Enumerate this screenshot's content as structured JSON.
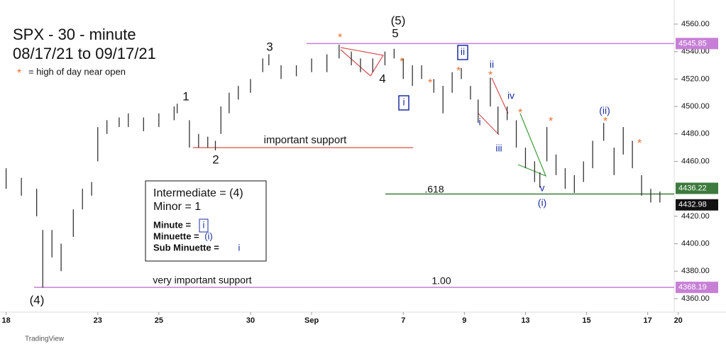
{
  "chart_data": {
    "type": "bar",
    "title": "SPX - 30 - minute",
    "subtitle": "08/17/21 to 09/17/21",
    "note_symbol": "*",
    "note": "= high of day near open",
    "x": [
      0,
      0.5,
      1.0,
      1.2,
      1.5,
      1.8,
      2.2,
      2.5,
      2.8,
      3.0,
      3.3,
      3.7,
      4.0,
      4.5,
      5.0,
      5.5,
      5.6,
      6.0,
      6.3,
      6.6,
      6.85,
      7.03,
      7.3,
      7.6,
      8.0,
      8.4,
      8.6,
      9.0,
      9.5,
      10.0,
      10.5,
      10.9,
      11.3,
      11.6,
      12.0,
      12.4,
      12.7,
      13.0,
      13.3,
      13.6,
      14.0,
      14.3,
      14.6,
      14.9,
      15.2,
      15.45,
      15.85,
      16.1,
      16.4,
      16.7,
      17.0,
      17.3,
      17.47,
      17.7,
      18.0,
      18.3,
      18.6,
      18.9,
      19.2,
      19.56,
      19.9,
      20.2,
      20.5,
      20.8,
      21.1,
      21.4
    ],
    "high": [
      4455,
      4448,
      4440,
      4410,
      4410,
      4400,
      4425,
      4440,
      4445,
      4485,
      4490,
      4492,
      4495,
      4492,
      4495,
      4500,
      4502,
      4490,
      4480,
      4478,
      4475,
      4500,
      4510,
      4515,
      4520,
      4535,
      4538,
      4530,
      4530,
      4535,
      4538,
      4545,
      4540,
      4535,
      4535,
      4540,
      4542,
      4535,
      4530,
      4530,
      4520,
      4515,
      4525,
      4528,
      4515,
      4505,
      4521,
      4500,
      4500,
      4490,
      4470,
      4460,
      4452,
      4485,
      4465,
      4455,
      4450,
      4460,
      4475,
      4488,
      4470,
      4485,
      4475,
      4450,
      4440,
      4438
    ],
    "low": [
      4440,
      4435,
      4420,
      4368,
      4390,
      4380,
      4405,
      4425,
      4435,
      4460,
      4480,
      4485,
      4485,
      4482,
      4485,
      4490,
      4495,
      4470,
      4470,
      4470,
      4468,
      4480,
      4495,
      4505,
      4510,
      4525,
      4530,
      4520,
      4522,
      4525,
      4525,
      4535,
      4530,
      4525,
      4525,
      4530,
      4535,
      4520,
      4515,
      4520,
      4510,
      4495,
      4510,
      4520,
      4505,
      4488,
      4500,
      4480,
      4490,
      4470,
      4455,
      4445,
      4441,
      4460,
      4450,
      4440,
      4437,
      4445,
      4455,
      4475,
      4450,
      4465,
      4455,
      4435,
      4430,
      4430
    ],
    "color": "#333333",
    "xlim": [
      -0.2,
      22.1
    ],
    "xticks": [
      {
        "value": 0,
        "label": "18"
      },
      {
        "value": 3,
        "label": "23"
      },
      {
        "value": 5,
        "label": "25"
      },
      {
        "value": 8,
        "label": "30"
      },
      {
        "value": 10,
        "label": "Sep"
      },
      {
        "value": 13,
        "label": "7"
      },
      {
        "value": 15,
        "label": "9"
      },
      {
        "value": 17,
        "label": "13"
      },
      {
        "value": 19,
        "label": "15"
      },
      {
        "value": 21,
        "label": "17"
      },
      {
        "value": 22,
        "label": "20"
      }
    ],
    "ylim": [
      4352.4,
      4572.4
    ],
    "yticks": [
      {
        "value": 4360,
        "label": "4360.00"
      },
      {
        "value": 4380,
        "label": "4380.00"
      },
      {
        "value": 4400,
        "label": "4400.00"
      },
      {
        "value": 4420,
        "label": "4420.00"
      },
      {
        "value": 4460,
        "label": "4460.00"
      },
      {
        "value": 4480,
        "label": "4480.00"
      },
      {
        "value": 4500,
        "label": "4500.00"
      },
      {
        "value": 4520,
        "label": "4520.00"
      },
      {
        "value": 4540,
        "label": "4540.00"
      },
      {
        "value": 4560,
        "label": "4560.00"
      }
    ],
    "levels": [
      {
        "value": 4545.85,
        "label": "4545.85",
        "color": "#c77fd6"
      },
      {
        "value": 4436.22,
        "label": "4436.22",
        "color": "#3d7a3d"
      },
      {
        "value": 4432.98,
        "label": "4432.98",
        "color": "#111111"
      },
      {
        "value": 4368.19,
        "label": "4368.19",
        "color": "#c77fd6"
      }
    ],
    "support": {
      "value": 4470,
      "label": "important support"
    },
    "annotations": [
      "(5)",
      "5",
      "3",
      "1",
      "2",
      "4",
      "(4)",
      "i",
      "ii",
      "ii",
      "iv",
      "i",
      "iii",
      "v",
      "(i)",
      "(ii)",
      "very important support",
      ".618",
      "1.00"
    ],
    "legend_box": [
      "Intermediate = (4)",
      "Minor = 1"
    ],
    "legend_items": [
      {
        "label": "Minute  =",
        "symbol": "i"
      },
      {
        "label": "Minuette  =",
        "symbol": "(i)"
      },
      {
        "label": "Sub Minuette  =",
        "symbol": "i"
      }
    ],
    "footer": "TradingView"
  }
}
